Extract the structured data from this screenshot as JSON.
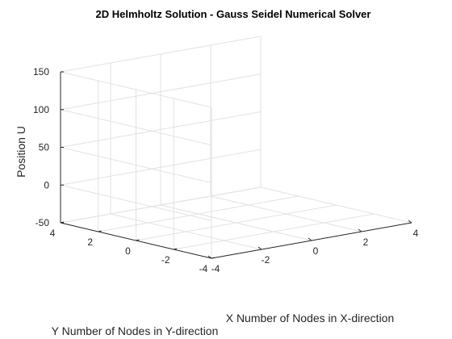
{
  "chart_data": {
    "type": "surface",
    "title": "2D Helmholtz Solution -  Gauss Seidel Numerical Solver",
    "xlabel": "X Number of Nodes in X-direction",
    "ylabel": "Y Number of Nodes in Y-direction",
    "zlabel": "Position U",
    "xlim": [
      -4,
      4
    ],
    "ylim": [
      -4,
      4
    ],
    "zlim": [
      -50,
      150
    ],
    "x_ticks": [
      -4,
      -2,
      0,
      2,
      4
    ],
    "y_ticks": [
      -4,
      -2,
      0,
      2,
      4
    ],
    "z_ticks": [
      -50,
      0,
      50,
      100,
      150
    ],
    "grid": true,
    "series": []
  }
}
